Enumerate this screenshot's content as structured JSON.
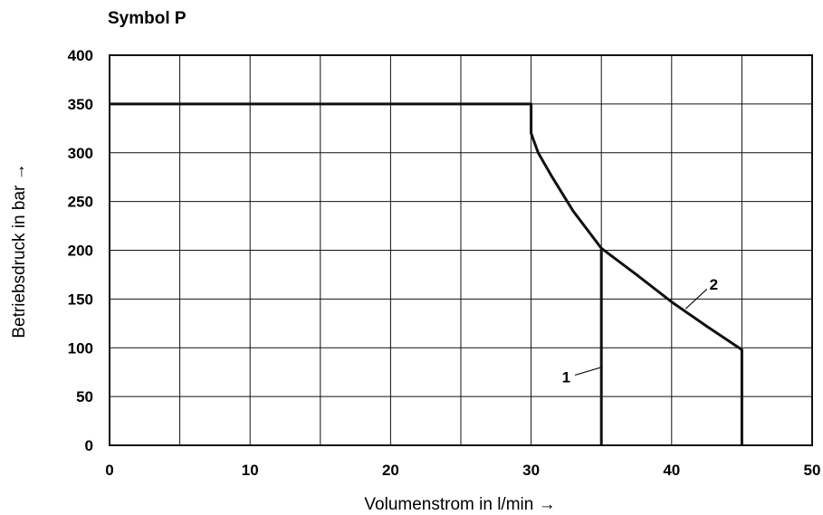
{
  "chart_data": {
    "type": "line",
    "title": "Symbol P",
    "xlabel": "Volumenstrom in l/min →",
    "ylabel": "Betriebsdruck in bar →",
    "xlim": [
      0,
      50
    ],
    "ylim": [
      0,
      400
    ],
    "x_ticks": [
      0,
      10,
      20,
      30,
      40,
      50
    ],
    "y_ticks": [
      0,
      50,
      100,
      150,
      200,
      250,
      300,
      350,
      400
    ],
    "grid": true,
    "grid_x_step": 5,
    "grid_y_step": 50,
    "series": [
      {
        "label": "1",
        "points": [
          [
            0,
            350
          ],
          [
            30,
            350
          ],
          [
            30,
            320
          ],
          [
            30.5,
            300
          ],
          [
            31.5,
            275
          ],
          [
            33,
            240
          ],
          [
            35,
            202
          ],
          [
            35,
            0
          ]
        ]
      },
      {
        "label": "2",
        "points": [
          [
            35,
            202
          ],
          [
            37.5,
            175
          ],
          [
            40,
            147
          ],
          [
            42.5,
            122
          ],
          [
            45,
            98
          ],
          [
            45,
            0
          ]
        ]
      }
    ],
    "annotations": [
      {
        "text": "1",
        "x": 32.5,
        "y": 70,
        "points_to": [
          35,
          80
        ]
      },
      {
        "text": "2",
        "x": 43,
        "y": 165,
        "points_to": [
          41,
          140
        ]
      }
    ]
  }
}
